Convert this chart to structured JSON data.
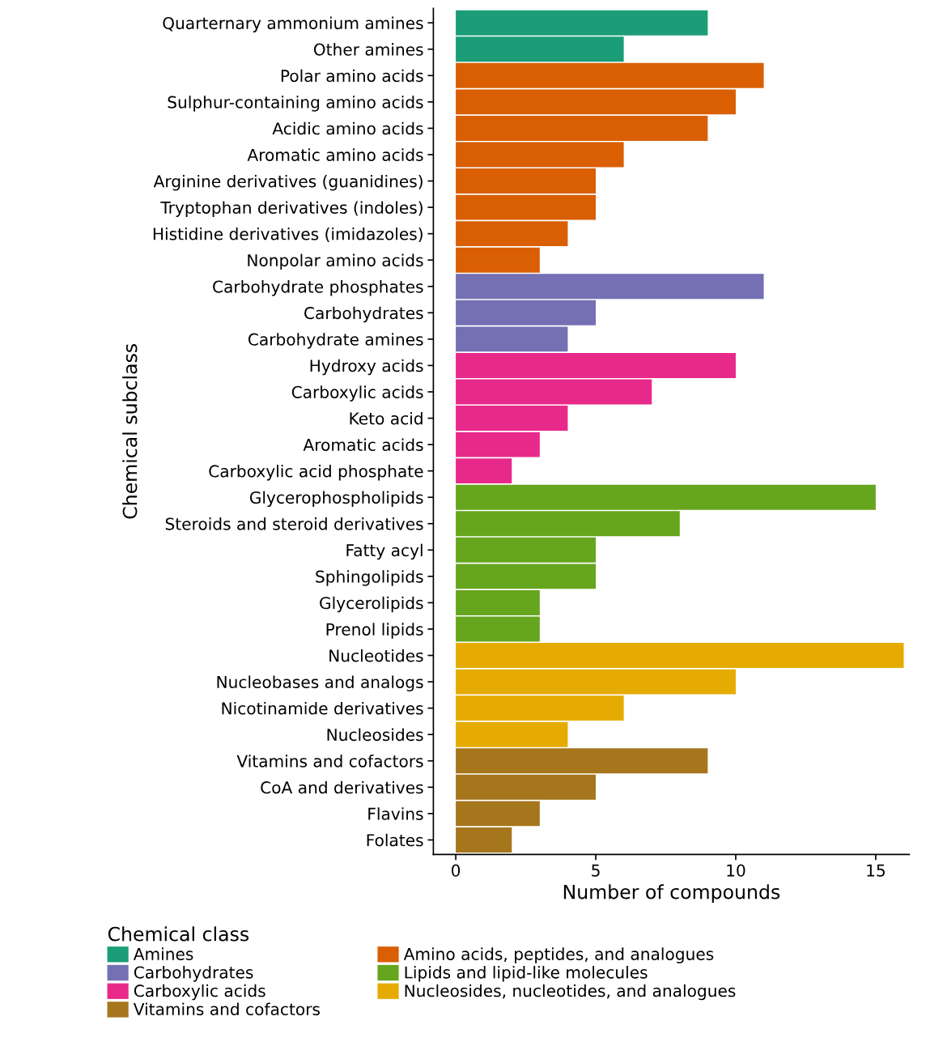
{
  "chart_data": {
    "type": "bar",
    "orientation": "horizontal",
    "xlabel": "Number of compounds",
    "ylabel": "Chemical subclass",
    "legend_title": "Chemical class",
    "legend": "bottom",
    "grid": false,
    "categories": [
      "Quarternary ammonium amines",
      "Other amines",
      "Polar amino acids",
      "Sulphur-containing amino acids",
      "Acidic amino acids",
      "Aromatic amino acids",
      "Arginine derivatives (guanidines)",
      "Tryptophan derivatives (indoles)",
      "Histidine derivatives (imidazoles)",
      "Nonpolar amino acids",
      "Carbohydrate phosphates",
      "Carbohydrates",
      "Carbohydrate amines",
      "Hydroxy acids",
      "Carboxylic acids",
      "Keto acid",
      "Aromatic acids",
      "Carboxylic acid phosphate",
      "Glycerophospholipids",
      "Steroids and steroid derivatives",
      "Fatty acyl",
      "Sphingolipids",
      "Glycerolipids",
      "Prenol lipids",
      "Nucleotides",
      "Nucleobases and analogs",
      "Nicotinamide derivatives",
      "Nucleosides",
      "Vitamins and cofactors",
      "CoA and derivatives",
      "Flavins",
      "Folates"
    ],
    "xlim": [
      -0.8,
      16.2
    ],
    "xticks": [
      0,
      5,
      10,
      15
    ],
    "series": [
      {
        "name": "Amines",
        "color": "#1b9e77",
        "values": [
          9,
          6,
          null,
          null,
          null,
          null,
          null,
          null,
          null,
          null,
          null,
          null,
          null,
          null,
          null,
          null,
          null,
          null,
          null,
          null,
          null,
          null,
          null,
          null,
          null,
          null,
          null,
          null,
          null,
          null,
          null,
          null
        ]
      },
      {
        "name": "Carbohydrates",
        "color": "#7570b3",
        "values": [
          null,
          null,
          null,
          null,
          null,
          null,
          null,
          null,
          null,
          null,
          11,
          5,
          4,
          null,
          null,
          null,
          null,
          null,
          null,
          null,
          null,
          null,
          null,
          null,
          null,
          null,
          null,
          null,
          null,
          null,
          null,
          null
        ]
      },
      {
        "name": "Carboxylic acids",
        "color": "#e7298a",
        "values": [
          null,
          null,
          null,
          null,
          null,
          null,
          null,
          null,
          null,
          null,
          null,
          null,
          null,
          10,
          7,
          4,
          3,
          2,
          null,
          null,
          null,
          null,
          null,
          null,
          null,
          null,
          null,
          null,
          null,
          null,
          null,
          null
        ]
      },
      {
        "name": "Vitamins and cofactors",
        "color": "#a6761d",
        "values": [
          null,
          null,
          null,
          null,
          null,
          null,
          null,
          null,
          null,
          null,
          null,
          null,
          null,
          null,
          null,
          null,
          null,
          null,
          null,
          null,
          null,
          null,
          null,
          null,
          null,
          null,
          null,
          null,
          9,
          5,
          3,
          2
        ]
      },
      {
        "name": "Amino acids, peptides, and analogues",
        "color": "#d95f02",
        "values": [
          null,
          null,
          11,
          10,
          9,
          6,
          5,
          5,
          4,
          3,
          null,
          null,
          null,
          null,
          null,
          null,
          null,
          null,
          null,
          null,
          null,
          null,
          null,
          null,
          null,
          null,
          null,
          null,
          null,
          null,
          null,
          null
        ]
      },
      {
        "name": "Lipids and lipid-like molecules",
        "color": "#66a61e",
        "values": [
          null,
          null,
          null,
          null,
          null,
          null,
          null,
          null,
          null,
          null,
          null,
          null,
          null,
          null,
          null,
          null,
          null,
          null,
          15,
          8,
          5,
          5,
          3,
          3,
          null,
          null,
          null,
          null,
          null,
          null,
          null,
          null
        ]
      },
      {
        "name": "Nucleosides, nucleotides, and analogues",
        "color": "#e6ab02",
        "values": [
          null,
          null,
          null,
          null,
          null,
          null,
          null,
          null,
          null,
          null,
          null,
          null,
          null,
          null,
          null,
          null,
          null,
          null,
          null,
          null,
          null,
          null,
          null,
          null,
          16,
          10,
          6,
          4,
          null,
          null,
          null,
          null
        ]
      }
    ]
  }
}
